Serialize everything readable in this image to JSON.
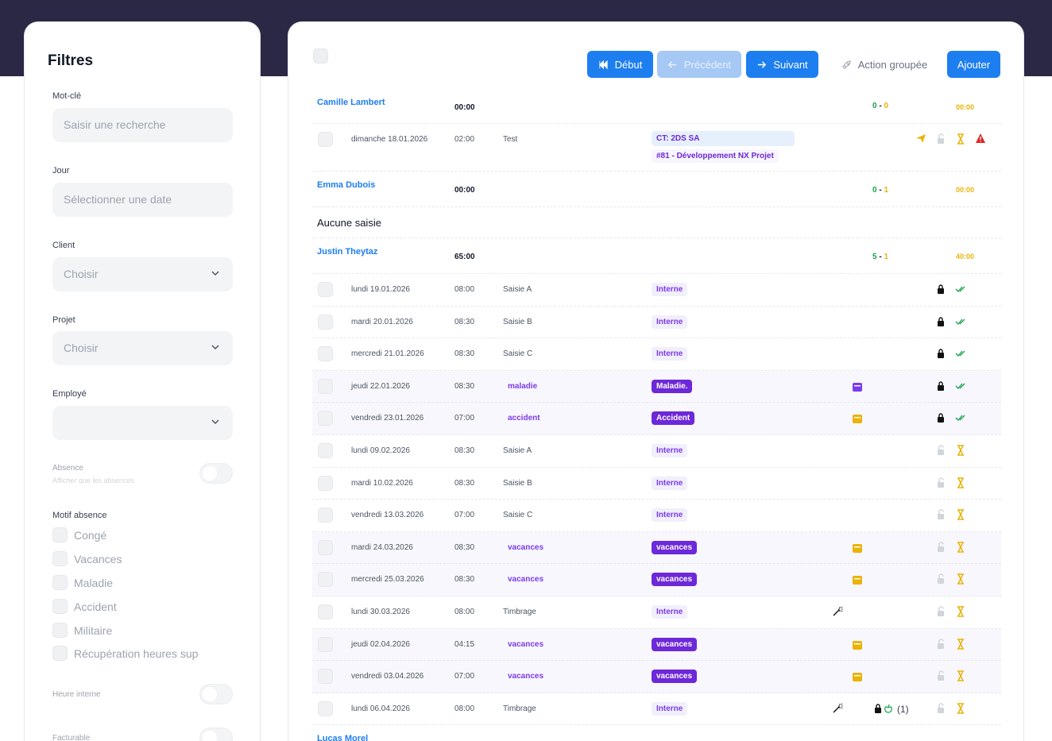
{
  "filters": {
    "title": "Filtres",
    "keyword": {
      "label": "Mot-clé",
      "placeholder": "Saisir une recherche"
    },
    "day": {
      "label": "Jour",
      "placeholder": "Sélectionner une date"
    },
    "client": {
      "label": "Client",
      "value": "Choisir"
    },
    "project": {
      "label": "Projet",
      "value": "Choisir"
    },
    "employee": {
      "label": "Employé",
      "value": ""
    },
    "absence": {
      "label": "Absence",
      "sublabel": "Afficher que les absences"
    },
    "absence_reason": {
      "label": "Motif absence",
      "options": [
        "Congé",
        "Vacances",
        "Maladie",
        "Accident",
        "Militaire",
        "Récupération heures sup"
      ]
    },
    "internal_hours": {
      "label": "Heure interne"
    },
    "billable": {
      "label": "Facturable"
    }
  },
  "toolbar": {
    "first": "Début",
    "prev": "Précédent",
    "next": "Suivant",
    "group_action": "Action groupée",
    "add": "Ajouter"
  },
  "colors": {
    "primary": "#1d7ef0",
    "purple": "#6d28d9",
    "green": "#16a34a",
    "yellow": "#eab308",
    "red": "#dc2626"
  },
  "groups": {
    "camille": {
      "name": "Camille Lambert",
      "total": "00:00",
      "count_a": "0",
      "sep": "-",
      "count_b": "0",
      "hours": "00:00",
      "entries": [
        {
          "date": "dimanche 18.01.2026",
          "time": "02:00",
          "desc": "Test",
          "client": "CT: 2DS SA",
          "project": "#81 - Développement NX Projet",
          "icons": [
            "send-icon",
            "unlock-icon",
            "hourglass-icon",
            "warning-icon"
          ]
        }
      ]
    },
    "emma": {
      "name": "Emma Dubois",
      "total": "00:00",
      "count_a": "0",
      "sep": "-",
      "count_b": "1",
      "hours": "00:00",
      "empty": "Aucune saisie"
    },
    "justin": {
      "name": "Justin Theytaz",
      "total": "65:00",
      "count_a": "5",
      "sep": "-",
      "count_b": "1",
      "hours": "40:00",
      "entries": [
        {
          "date": "lundi 19.01.2026",
          "time": "08:00",
          "desc": "Saisie A",
          "tag": "Interne"
        },
        {
          "date": "mardi 20.01.2026",
          "time": "08:30",
          "desc": "Saisie B",
          "tag": "Interne"
        },
        {
          "date": "mercredi 21.01.2026",
          "time": "08:30",
          "desc": "Saisie C",
          "tag": "Interne"
        },
        {
          "date": "jeudi 22.01.2026",
          "time": "08:30",
          "desc": "maladie",
          "tag": "Maladie."
        },
        {
          "date": "vendredi 23.01.2026",
          "time": "07:00",
          "desc": "accident",
          "tag": "Accident"
        },
        {
          "date": "lundi 09.02.2026",
          "time": "08:30",
          "desc": "Saisie A",
          "tag": "Interne"
        },
        {
          "date": "mardi 10.02.2026",
          "time": "08:30",
          "desc": "Saisie B",
          "tag": "Interne"
        },
        {
          "date": "vendredi 13.03.2026",
          "time": "07:00",
          "desc": "Saisie C",
          "tag": "Interne"
        },
        {
          "date": "mardi 24.03.2026",
          "time": "08:30",
          "desc": "vacances",
          "tag": "vacances"
        },
        {
          "date": "mercredi 25.03.2026",
          "time": "08:30",
          "desc": "vacances",
          "tag": "vacances"
        },
        {
          "date": "lundi 30.03.2026",
          "time": "08:00",
          "desc": "Timbrage",
          "tag": "Interne"
        },
        {
          "date": "jeudi 02.04.2026",
          "time": "04:15",
          "desc": "vacances",
          "tag": "vacances"
        },
        {
          "date": "vendredi 03.04.2026",
          "time": "07:00",
          "desc": "vacances",
          "tag": "vacances"
        },
        {
          "date": "lundi 06.04.2026",
          "time": "08:00",
          "desc": "Timbrage",
          "tag": "Interne",
          "attachment_count": "(1)"
        }
      ]
    },
    "lucas": {
      "name": "Lucas Morel"
    }
  }
}
